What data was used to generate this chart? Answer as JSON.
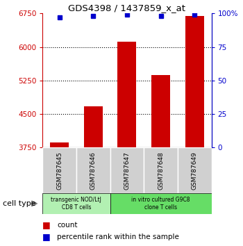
{
  "title": "GDS4398 / 1437859_x_at",
  "samples": [
    "GSM787645",
    "GSM787646",
    "GSM787647",
    "GSM787648",
    "GSM787649"
  ],
  "counts": [
    3870,
    4680,
    6120,
    5380,
    6690
  ],
  "percentiles": [
    97,
    98,
    99,
    98,
    99
  ],
  "ylim_left": [
    3750,
    6750
  ],
  "ylim_right": [
    0,
    100
  ],
  "yticks_left": [
    3750,
    4500,
    5250,
    6000,
    6750
  ],
  "yticks_right": [
    0,
    25,
    50,
    75,
    100
  ],
  "ytick_labels_left": [
    "3750",
    "4500",
    "5250",
    "6000",
    "6750"
  ],
  "ytick_labels_right": [
    "0",
    "25",
    "50",
    "75",
    "100%"
  ],
  "bar_color": "#cc0000",
  "dot_color": "#0000cc",
  "group1_samples": [
    0,
    1
  ],
  "group2_samples": [
    2,
    3,
    4
  ],
  "group1_label": "transgenic NOD/LtJ\nCD8 T cells",
  "group2_label": "in vitro cultured G9C8\nclone T cells",
  "group1_bg": "#b2f0b2",
  "group2_bg": "#66dd66",
  "cell_type_label": "cell type",
  "legend_count_label": "count",
  "legend_pct_label": "percentile rank within the sample",
  "bar_width": 0.55
}
